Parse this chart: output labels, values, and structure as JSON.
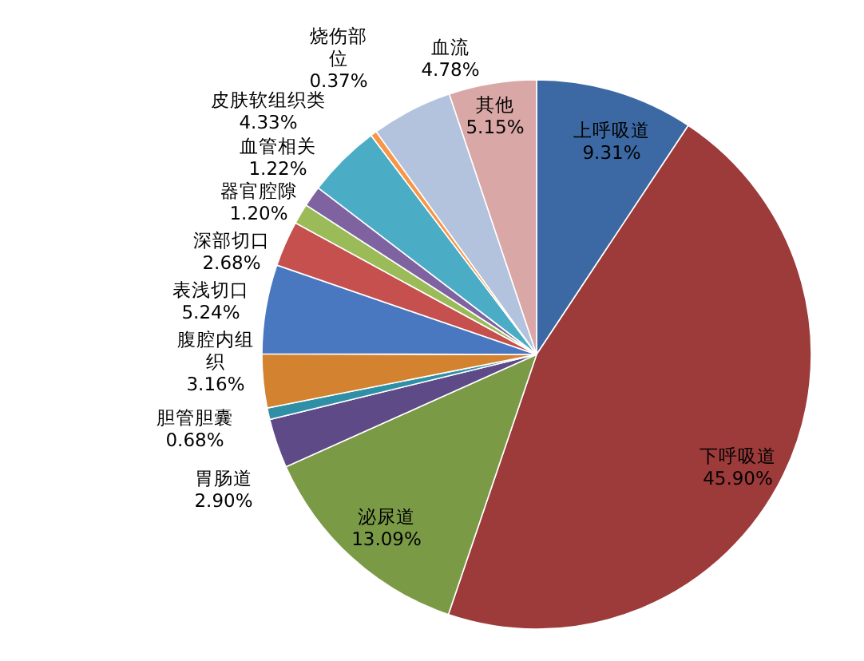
{
  "chart_data": {
    "type": "pie",
    "categories": [
      "上呼吸道",
      "下呼吸道",
      "泌尿道",
      "胃肠道",
      "胆管胆囊",
      "腹腔内组织",
      "表浅切口",
      "深部切口",
      "器官腔隙",
      "血管相关",
      "皮肤软组织类",
      "烧伤部位",
      "血流",
      "其他"
    ],
    "values": [
      9.31,
      45.9,
      13.09,
      2.9,
      0.68,
      3.16,
      5.24,
      2.68,
      1.2,
      1.22,
      4.33,
      0.37,
      4.78,
      5.15
    ],
    "value_labels": [
      "9.31%",
      "45.90%",
      "13.09%",
      "2.90%",
      "0.68%",
      "3.16%",
      "5.24%",
      "2.68%",
      "1.20%",
      "1.22%",
      "4.33%",
      "0.37%",
      "4.78%",
      "5.15%"
    ],
    "colors": [
      "#3c69a3",
      "#9c3b3a",
      "#7b9a46",
      "#5e4a87",
      "#2f8fa6",
      "#d3822f",
      "#4a78c0",
      "#c5504d",
      "#9bbb59",
      "#7f63a0",
      "#4bacc6",
      "#f79646",
      "#b3c3de",
      "#d9a7a6"
    ]
  }
}
